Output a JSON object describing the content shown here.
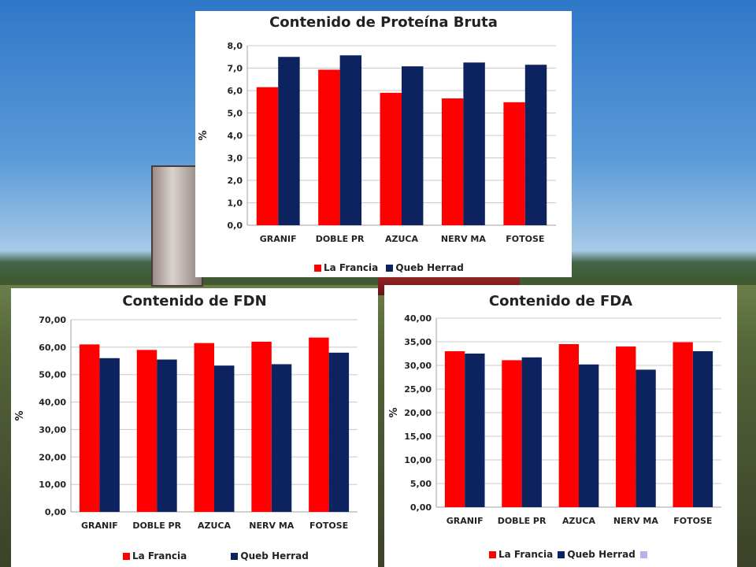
{
  "chart_data": [
    {
      "id": "protein",
      "type": "bar",
      "title": "Contenido de Proteína Bruta",
      "ylabel": "%",
      "categories": [
        "GRANIF",
        "DOBLE PR",
        "AZUCA",
        "NERV MA",
        "FOTOSE"
      ],
      "series": [
        {
          "name": "La Francia",
          "color": "#ff0000",
          "values": [
            6.15,
            6.93,
            5.9,
            5.65,
            5.48
          ]
        },
        {
          "name": "Queb Herrad",
          "color": "#0d2360",
          "values": [
            7.5,
            7.57,
            7.08,
            7.25,
            7.15
          ]
        }
      ],
      "ylim": [
        0,
        8
      ],
      "yticks": [
        "0,0",
        "1,0",
        "2,0",
        "3,0",
        "4,0",
        "5,0",
        "6,0",
        "7,0",
        "8,0"
      ],
      "grid": true,
      "legend": "bottom"
    },
    {
      "id": "fdn",
      "type": "bar",
      "title": "Contenido de FDN",
      "ylabel": "%",
      "categories": [
        "GRANIF",
        "DOBLE PR",
        "AZUCA",
        "NERV MA",
        "FOTOSE"
      ],
      "series": [
        {
          "name": "La Francia",
          "color": "#ff0000",
          "values": [
            61.0,
            59.0,
            61.5,
            62.0,
            63.5
          ]
        },
        {
          "name": "Queb Herrad",
          "color": "#0d2360",
          "values": [
            56.0,
            55.5,
            53.3,
            53.8,
            58.0
          ]
        }
      ],
      "ylim": [
        0,
        70
      ],
      "yticks": [
        "0,00",
        "10,00",
        "20,00",
        "30,00",
        "40,00",
        "50,00",
        "60,00",
        "70,00"
      ],
      "grid": true,
      "legend": "bottom"
    },
    {
      "id": "fda",
      "type": "bar",
      "title": "Contenido de FDA",
      "ylabel": "%",
      "categories": [
        "GRANIF",
        "DOBLE PR",
        "AZUCA",
        "NERV MA",
        "FOTOSE"
      ],
      "series": [
        {
          "name": "La Francia",
          "color": "#ff0000",
          "values": [
            33.0,
            31.1,
            34.5,
            34.0,
            34.9
          ]
        },
        {
          "name": "Queb Herrad",
          "color": "#0d2360",
          "values": [
            32.5,
            31.7,
            30.2,
            29.1,
            33.0
          ]
        }
      ],
      "ylim": [
        0,
        40
      ],
      "yticks": [
        "0,00",
        "5,00",
        "10,00",
        "15,00",
        "20,00",
        "25,00",
        "30,00",
        "35,00",
        "40,00"
      ],
      "grid": true,
      "legend": "bottom",
      "extra_legend_swatch": "#b4b4e6"
    }
  ]
}
